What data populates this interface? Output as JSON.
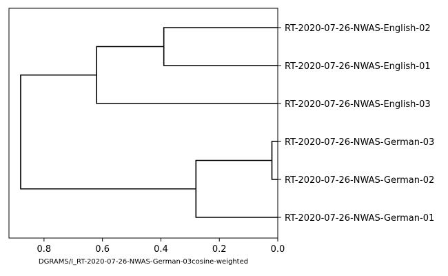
{
  "chart_data": {
    "type": "dendrogram",
    "orientation": "left",
    "xlabel": "DGRAMS/I_RT-2020-07-26-NWAS-German-03cosine-weighted",
    "xlim": [
      0.92,
      0.0
    ],
    "xticks": [
      0.8,
      0.6,
      0.4,
      0.2,
      0.0
    ],
    "xtick_labels": [
      "0.8",
      "0.6",
      "0.4",
      "0.2",
      "0.0"
    ],
    "line_color": "#000000",
    "leaves": [
      "RT-2020-07-26-NWAS-English-02",
      "RT-2020-07-26-NWAS-English-01",
      "RT-2020-07-26-NWAS-English-03",
      "RT-2020-07-26-NWAS-German-03",
      "RT-2020-07-26-NWAS-German-02",
      "RT-2020-07-26-NWAS-German-01"
    ],
    "merges": [
      {
        "children": [
          "L3",
          "L4"
        ],
        "distance": 0.02
      },
      {
        "children": [
          "L0",
          "L1"
        ],
        "distance": 0.39
      },
      {
        "children": [
          "M0",
          "L5"
        ],
        "distance": 0.28
      },
      {
        "children": [
          "M1",
          "L2"
        ],
        "distance": 0.62
      },
      {
        "children": [
          "M3",
          "M2"
        ],
        "distance": 0.88
      }
    ]
  }
}
